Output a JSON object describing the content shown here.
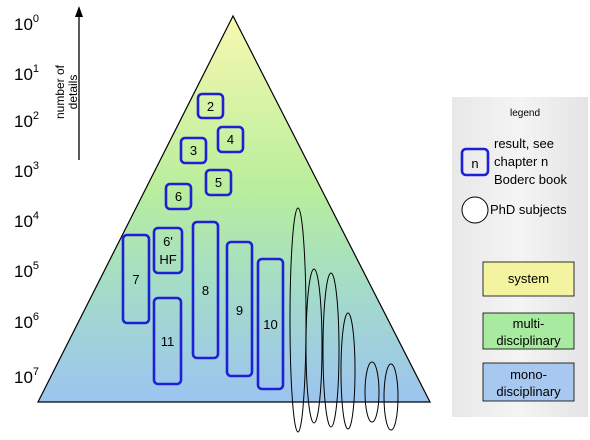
{
  "axis": {
    "labels": [
      {
        "base": "10",
        "exp": "0"
      },
      {
        "base": "10",
        "exp": "1"
      },
      {
        "base": "10",
        "exp": "2"
      },
      {
        "base": "10",
        "exp": "3"
      },
      {
        "base": "10",
        "exp": "4"
      },
      {
        "base": "10",
        "exp": "5"
      },
      {
        "base": "10",
        "exp": "6"
      },
      {
        "base": "10",
        "exp": "7"
      }
    ],
    "title_line1": "number of",
    "title_line2": "details"
  },
  "boxes": [
    {
      "label": "2"
    },
    {
      "label": "4"
    },
    {
      "label": "3"
    },
    {
      "label": "5"
    },
    {
      "label": "6"
    },
    {
      "label": "6'",
      "label2": "HF"
    },
    {
      "label": "7"
    },
    {
      "label": "8"
    },
    {
      "label": "9"
    },
    {
      "label": "10"
    },
    {
      "label": "11"
    }
  ],
  "legend": {
    "title": "legend",
    "result_key": "n",
    "result_line1": "result, see",
    "result_line2": "chapter n",
    "result_line3": "Boderc book",
    "phd_label": "PhD subjects",
    "system": "system",
    "multi_line1": "multi-",
    "multi_line2": "disciplinary",
    "mono_line1": "mono-",
    "mono_line2": "disciplinary"
  },
  "colors": {
    "box_stroke": "#1f1fd6",
    "system": "#f4f4a0",
    "multi": "#a8eba0",
    "mono": "#a8c8f0"
  }
}
